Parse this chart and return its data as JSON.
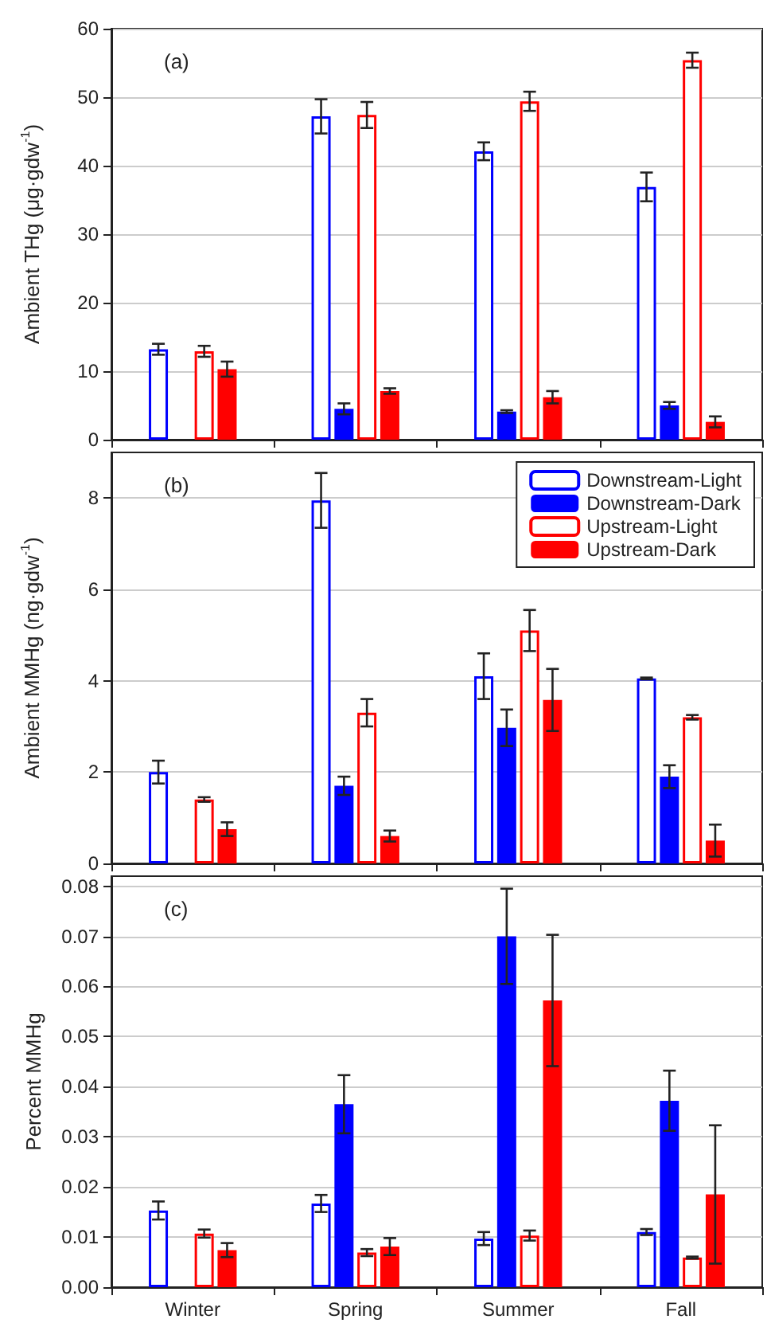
{
  "chart_data": [
    {
      "type": "bar",
      "ylabel": "Ambient THg (μg·gdw$^{-1}$)",
      "annotations": [
        "(a)"
      ],
      "categories": [
        null,
        null,
        null,
        null
      ],
      "ylim": [
        0,
        60
      ],
      "yticks": [
        0,
        10,
        20,
        30,
        40,
        50,
        60
      ],
      "grid": "y",
      "legend": false,
      "tick_labels": "y",
      "series": [
        {
          "color": "#0000ff",
          "values": [
            13.2,
            47.2,
            42.1,
            36.9
          ],
          "errors": [
            0.8,
            2.5,
            1.3,
            2.1
          ]
        },
        {
          "color": "#0000ff",
          "values": [
            null,
            4.5,
            4.1,
            5.0
          ],
          "errors": [
            null,
            0.8,
            0.2,
            0.5
          ]
        },
        {
          "color": "#ff0000",
          "values": [
            12.9,
            47.4,
            49.4,
            55.4
          ],
          "errors": [
            0.8,
            1.9,
            1.4,
            1.1
          ]
        },
        {
          "color": "#ff0000",
          "values": [
            10.3,
            7.1,
            6.2,
            2.6
          ],
          "errors": [
            1.1,
            0.4,
            0.9,
            0.8
          ]
        }
      ]
    },
    {
      "type": "bar",
      "ylabel": "Ambient MMHg (ng·gdw$^{-1}$)",
      "annotations": [
        "(b)"
      ],
      "categories": [
        null,
        null,
        null,
        null
      ],
      "ylim": [
        0,
        9
      ],
      "yticks": [
        0,
        2,
        4,
        6,
        8
      ],
      "grid": "y",
      "legend": "top right",
      "tick_labels": "y",
      "series": [
        {
          "name": "Downstream-Light",
          "color": "#0000ff",
          "values": [
            2.0,
            7.95,
            4.1,
            4.05
          ],
          "errors": [
            0.25,
            0.6,
            0.5,
            0.02
          ]
        },
        {
          "name": "Downstream-Dark",
          "color": "#0000ff",
          "values": [
            null,
            1.7,
            2.97,
            1.9
          ],
          "errors": [
            null,
            0.2,
            0.4,
            0.25
          ]
        },
        {
          "name": "Upstream-Light",
          "color": "#ff0000",
          "values": [
            1.4,
            3.3,
            5.1,
            3.2
          ],
          "errors": [
            0.05,
            0.3,
            0.45,
            0.05
          ]
        },
        {
          "name": "Upstream-Dark",
          "color": "#ff0000",
          "values": [
            0.75,
            0.6,
            3.58,
            0.5
          ],
          "errors": [
            0.15,
            0.12,
            0.68,
            0.35
          ]
        }
      ]
    },
    {
      "type": "bar",
      "ylabel": "Percent MMHg",
      "annotations": [
        "(c)"
      ],
      "categories": [
        "Winter",
        "Spring",
        "Summer",
        "Fall"
      ],
      "ylim": [
        0,
        0.082
      ],
      "yticks": [
        {
          "value": 0,
          "label": "0.00"
        },
        0.01,
        0.02,
        0.03,
        0.04,
        0.05,
        0.06,
        0.07,
        0.08
      ],
      "grid": "y",
      "legend": false,
      "series": [
        {
          "color": "#0000ff",
          "values": [
            0.0153,
            0.0167,
            0.0097,
            0.011
          ],
          "errors": [
            0.0018,
            0.0017,
            0.0013,
            0.0006
          ]
        },
        {
          "color": "#0000ff",
          "values": [
            null,
            0.0365,
            0.07,
            0.0372
          ],
          "errors": [
            null,
            0.0058,
            0.0095,
            0.006
          ]
        },
        {
          "color": "#ff0000",
          "values": [
            0.0107,
            0.0069,
            0.0103,
            0.0059
          ],
          "errors": [
            0.0008,
            0.0007,
            0.001,
            0.0002
          ]
        },
        {
          "color": "#ff0000",
          "values": [
            0.0074,
            0.0081,
            0.0572,
            0.0185
          ],
          "errors": [
            0.0014,
            0.0017,
            0.0131,
            0.0138
          ]
        }
      ]
    }
  ]
}
